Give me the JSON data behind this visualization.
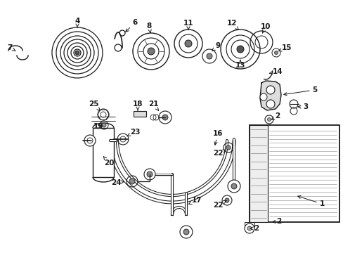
{
  "bg_color": "#ffffff",
  "line_color": "#1a1a1a",
  "label_color": "#1a1a1a"
}
